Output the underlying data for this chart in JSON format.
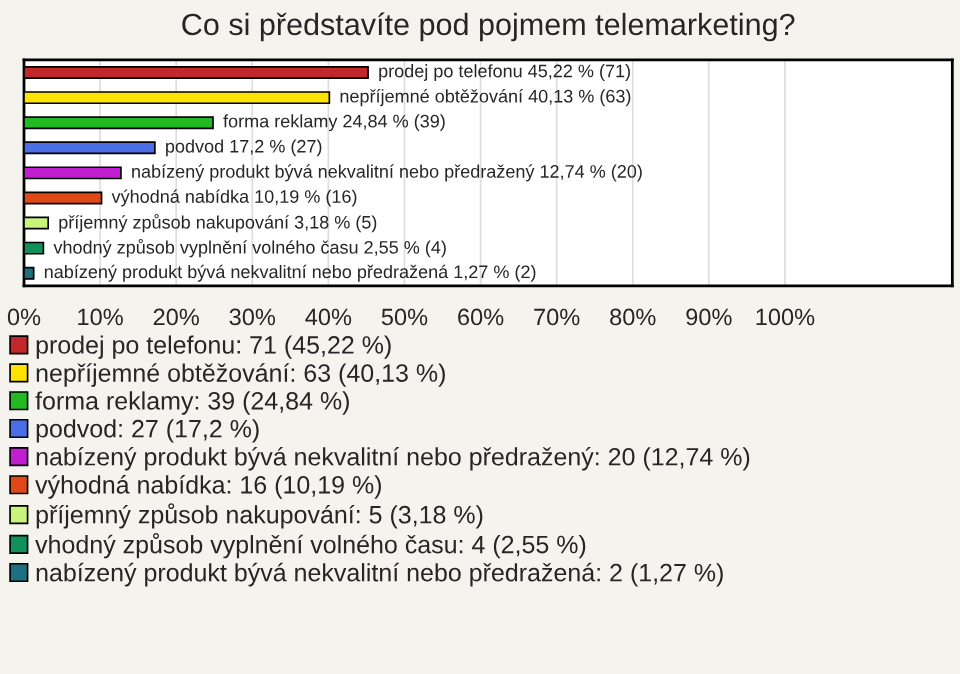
{
  "chart_data": {
    "type": "bar",
    "orientation": "horizontal",
    "stacked": true,
    "title": "Co si představíte pod pojmem telemarketing?",
    "categories": [
      null,
      null,
      null,
      null,
      null,
      null,
      null,
      null,
      null
    ],
    "series": [
      {
        "name": "prodej po telefonu: 71 (45,22 %)",
        "color": "#c0282a",
        "values": [
          45.22,
          null,
          null,
          null,
          null,
          null,
          null,
          null,
          null
        ],
        "value_labels": [
          "prodej po telefonu 45,22 % (71)",
          null,
          null,
          null,
          null,
          null,
          null,
          null,
          null
        ]
      },
      {
        "name": "nepříjemné obtěžování: 63 (40,13 %)",
        "color": "#ffe200",
        "values": [
          null,
          40.13,
          null,
          null,
          null,
          null,
          null,
          null,
          null
        ],
        "value_labels": [
          null,
          "nepříjemné obtěžování 40,13 % (63)",
          null,
          null,
          null,
          null,
          null,
          null,
          null
        ]
      },
      {
        "name": "forma reklamy: 39 (24,84 %)",
        "color": "#22b922",
        "values": [
          null,
          null,
          24.84,
          null,
          null,
          null,
          null,
          null,
          null
        ],
        "value_labels": [
          null,
          null,
          "forma reklamy 24,84 % (39)",
          null,
          null,
          null,
          null,
          null,
          null
        ]
      },
      {
        "name": "podvod: 27 (17,2 %)",
        "color": "#4a6ee6",
        "values": [
          null,
          null,
          null,
          17.2,
          null,
          null,
          null,
          null,
          null
        ],
        "value_labels": [
          null,
          null,
          null,
          "podvod 17,2 % (27)",
          null,
          null,
          null,
          null,
          null
        ]
      },
      {
        "name": "nabízený produkt bývá nekvalitní nebo předražený: 20 (12,74 %)",
        "color": "#c01ed0",
        "values": [
          null,
          null,
          null,
          null,
          12.74,
          null,
          null,
          null,
          null
        ],
        "value_labels": [
          null,
          null,
          null,
          null,
          "nabízený produkt bývá nekvalitní nebo předražený 12,74 % (20)",
          null,
          null,
          null,
          null
        ]
      },
      {
        "name": "výhodná nabídka: 16 (10,19 %)",
        "color": "#e04818",
        "values": [
          null,
          null,
          null,
          null,
          null,
          10.19,
          null,
          null,
          null
        ],
        "value_labels": [
          null,
          null,
          null,
          null,
          null,
          "výhodná nabídka 10,19 % (16)",
          null,
          null,
          null
        ]
      },
      {
        "name": "příjemný způsob nakupování: 5 (3,18 %)",
        "color": "#c8f57a",
        "values": [
          null,
          null,
          null,
          null,
          null,
          null,
          3.18,
          null,
          null
        ],
        "value_labels": [
          null,
          null,
          null,
          null,
          null,
          null,
          "příjemný způsob nakupování 3,18 % (5)",
          null,
          null
        ]
      },
      {
        "name": "vhodný způsob vyplnění volného času: 4 (2,55 %)",
        "color": "#12905a",
        "values": [
          null,
          null,
          null,
          null,
          null,
          null,
          null,
          2.55,
          null
        ],
        "value_labels": [
          null,
          null,
          null,
          null,
          null,
          null,
          null,
          "vhodný způsob vyplnění volného času 2,55 % (4)",
          null
        ]
      },
      {
        "name": "nabízený produkt bývá nekvalitní nebo předražená: 2 (1,27 %)",
        "color": "#1e7080",
        "values": [
          null,
          null,
          null,
          null,
          null,
          null,
          null,
          null,
          1.27
        ],
        "value_labels": [
          null,
          null,
          null,
          null,
          null,
          null,
          null,
          null,
          "nabízený produkt bývá nekvalitní nebo předražená 1,27 % (2)"
        ]
      }
    ],
    "xlim": [
      0,
      122
    ],
    "xticks": [
      {
        "value": 0,
        "label": "0%"
      },
      {
        "value": 10,
        "label": "10%"
      },
      {
        "value": 20,
        "label": "20%"
      },
      {
        "value": 30,
        "label": "30%"
      },
      {
        "value": 40,
        "label": "40%"
      },
      {
        "value": 50,
        "label": "50%"
      },
      {
        "value": 60,
        "label": "60%"
      },
      {
        "value": 70,
        "label": "70%"
      },
      {
        "value": 80,
        "label": "80%"
      },
      {
        "value": 90,
        "label": "90%"
      },
      {
        "value": 100,
        "label": "100%"
      }
    ],
    "grid": "x",
    "legend": "bottom",
    "tick_labels": "x"
  }
}
